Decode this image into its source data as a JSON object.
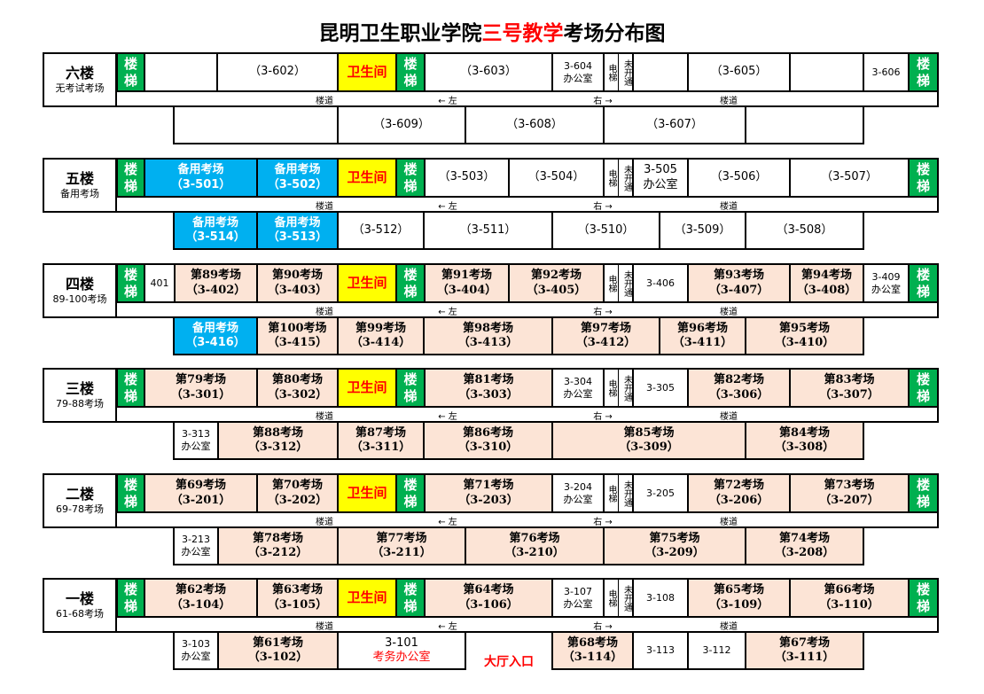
{
  "title": {
    "part1": "昆明卫生职业学院",
    "part2": "三号教学",
    "part3": "考场分布图"
  },
  "colors": {
    "exam": "#fce4d6",
    "spare": "#00b0f0",
    "stair": "#00b050",
    "toilet": "#ffff00",
    "highlight": "#ff0000"
  },
  "corridor": {
    "hall": "楼道",
    "left": "← 左",
    "right": "右 →"
  },
  "floors": [
    {
      "name": "六楼",
      "note": "无考试考场",
      "top": [
        {
          "type": "stair",
          "lines": [
            "楼",
            "梯"
          ]
        },
        {
          "type": "blank",
          "lines": []
        },
        {
          "type": "room",
          "lines": [
            "（3-602）"
          ]
        },
        {
          "type": "toilet",
          "lines": [
            "卫生间"
          ]
        },
        {
          "type": "stair",
          "lines": [
            "楼",
            "梯"
          ]
        },
        {
          "type": "room",
          "lines": [
            "（3-603）"
          ]
        },
        {
          "type": "office",
          "lines": [
            "3-604",
            "办公室"
          ]
        },
        {
          "type": "elevator",
          "lines": [
            "电梯",
            "未开通"
          ]
        },
        {
          "type": "blank",
          "lines": []
        },
        {
          "type": "room",
          "lines": [
            "（3-605）"
          ]
        },
        {
          "type": "blank",
          "lines": []
        },
        {
          "type": "office",
          "lines": [
            "3-606"
          ]
        },
        {
          "type": "stair",
          "lines": [
            "楼",
            "梯"
          ]
        }
      ],
      "bottom": [
        {
          "type": "blank",
          "lines": []
        },
        {
          "type": "room",
          "lines": [
            "（3-609）"
          ]
        },
        {
          "type": "room",
          "lines": [
            "（3-608）"
          ]
        },
        {
          "type": "room",
          "lines": [
            "（3-607）"
          ]
        },
        {
          "type": "blank",
          "lines": []
        }
      ]
    },
    {
      "name": "五楼",
      "note": "备用考场",
      "top": [
        {
          "type": "stair",
          "lines": [
            "楼",
            "梯"
          ]
        },
        {
          "type": "spare",
          "lines": [
            "备用考场",
            "（3-501）"
          ]
        },
        {
          "type": "spare",
          "lines": [
            "备用考场",
            "（3-502）"
          ]
        },
        {
          "type": "toilet",
          "lines": [
            "卫生间"
          ]
        },
        {
          "type": "stair",
          "lines": [
            "楼",
            "梯"
          ]
        },
        {
          "type": "room",
          "lines": [
            "（3-503）"
          ]
        },
        {
          "type": "room",
          "lines": [
            "（3-504）"
          ]
        },
        {
          "type": "elevator",
          "lines": [
            "电梯",
            "未开通"
          ]
        },
        {
          "type": "room",
          "lines": [
            "3-505",
            "办公室"
          ]
        },
        {
          "type": "room",
          "lines": [
            "（3-506）"
          ]
        },
        {
          "type": "room",
          "lines": [
            "（3-507）"
          ]
        },
        {
          "type": "stair",
          "lines": [
            "楼",
            "梯"
          ]
        }
      ],
      "bottom": [
        {
          "type": "spare",
          "lines": [
            "备用考场",
            "（3-514）"
          ]
        },
        {
          "type": "spare",
          "lines": [
            "备用考场",
            "（3-513）"
          ]
        },
        {
          "type": "room",
          "lines": [
            "（3-512）"
          ]
        },
        {
          "type": "room",
          "lines": [
            "（3-511）"
          ]
        },
        {
          "type": "room",
          "lines": [
            "（3-510）"
          ]
        },
        {
          "type": "room",
          "lines": [
            "（3-509）"
          ]
        },
        {
          "type": "room",
          "lines": [
            "（3-508）"
          ]
        }
      ]
    },
    {
      "name": "四楼",
      "note": "89-100考场",
      "top": [
        {
          "type": "stair",
          "lines": [
            "楼",
            "梯"
          ]
        },
        {
          "type": "office",
          "lines": [
            "401"
          ]
        },
        {
          "type": "exam",
          "lines": [
            "第89考场",
            "（3-402）"
          ]
        },
        {
          "type": "exam",
          "lines": [
            "第90考场",
            "（3-403）"
          ]
        },
        {
          "type": "toilet",
          "lines": [
            "卫生间"
          ]
        },
        {
          "type": "stair",
          "lines": [
            "楼",
            "梯"
          ]
        },
        {
          "type": "exam",
          "lines": [
            "第91考场",
            "（3-404）"
          ]
        },
        {
          "type": "exam",
          "lines": [
            "第92考场",
            "（3-405）"
          ]
        },
        {
          "type": "elevator",
          "lines": [
            "电梯",
            "未开通"
          ]
        },
        {
          "type": "office",
          "lines": [
            "3-406"
          ]
        },
        {
          "type": "exam",
          "lines": [
            "第93考场",
            "（3-407）"
          ]
        },
        {
          "type": "exam",
          "lines": [
            "第94考场",
            "（3-408）"
          ]
        },
        {
          "type": "office",
          "lines": [
            "3-409",
            "办公室"
          ]
        },
        {
          "type": "stair",
          "lines": [
            "楼",
            "梯"
          ]
        }
      ],
      "bottom": [
        {
          "type": "spare",
          "lines": [
            "备用考场",
            "（3-416）"
          ]
        },
        {
          "type": "exam",
          "lines": [
            "第100考场",
            "（3-415）"
          ]
        },
        {
          "type": "exam",
          "lines": [
            "第99考场",
            "（3-414）"
          ]
        },
        {
          "type": "exam",
          "lines": [
            "第98考场",
            "（3-413）"
          ]
        },
        {
          "type": "exam",
          "lines": [
            "第97考场",
            "（3-412）"
          ]
        },
        {
          "type": "exam",
          "lines": [
            "第96考场",
            "（3-411）"
          ]
        },
        {
          "type": "exam",
          "lines": [
            "第95考场",
            "（3-410）"
          ]
        }
      ]
    },
    {
      "name": "三楼",
      "note": "79-88考场",
      "top": [
        {
          "type": "stair",
          "lines": [
            "楼",
            "梯"
          ]
        },
        {
          "type": "exam",
          "lines": [
            "第79考场",
            "（3-301）"
          ]
        },
        {
          "type": "exam",
          "lines": [
            "第80考场",
            "（3-302）"
          ]
        },
        {
          "type": "toilet",
          "lines": [
            "卫生间"
          ]
        },
        {
          "type": "stair",
          "lines": [
            "楼",
            "梯"
          ]
        },
        {
          "type": "exam",
          "lines": [
            "第81考场",
            "（3-303）"
          ]
        },
        {
          "type": "office",
          "lines": [
            "3-304",
            "办公室"
          ]
        },
        {
          "type": "elevator",
          "lines": [
            "电梯",
            "未开通"
          ]
        },
        {
          "type": "office",
          "lines": [
            "3-305"
          ]
        },
        {
          "type": "exam",
          "lines": [
            "第82考场",
            "（3-306）"
          ]
        },
        {
          "type": "exam",
          "lines": [
            "第83考场",
            "（3-307）"
          ]
        },
        {
          "type": "stair",
          "lines": [
            "楼",
            "梯"
          ]
        }
      ],
      "bottom": [
        {
          "type": "office",
          "lines": [
            "3-313",
            "办公室"
          ]
        },
        {
          "type": "exam",
          "lines": [
            "第88考场",
            "（3-312）"
          ]
        },
        {
          "type": "exam",
          "lines": [
            "第87考场",
            "（3-311）"
          ]
        },
        {
          "type": "exam",
          "lines": [
            "第86考场",
            "（3-310）"
          ]
        },
        {
          "type": "exam",
          "lines": [
            "第85考场",
            "（3-309）"
          ]
        },
        {
          "type": "exam",
          "lines": [
            "第84考场",
            "（3-308）"
          ]
        }
      ]
    },
    {
      "name": "二楼",
      "note": "69-78考场",
      "top": [
        {
          "type": "stair",
          "lines": [
            "楼",
            "梯"
          ]
        },
        {
          "type": "exam",
          "lines": [
            "第69考场",
            "（3-201）"
          ]
        },
        {
          "type": "exam",
          "lines": [
            "第70考场",
            "（3-202）"
          ]
        },
        {
          "type": "toilet",
          "lines": [
            "卫生间"
          ]
        },
        {
          "type": "stair",
          "lines": [
            "楼",
            "梯"
          ]
        },
        {
          "type": "exam",
          "lines": [
            "第71考场",
            "（3-203）"
          ]
        },
        {
          "type": "office",
          "lines": [
            "3-204",
            "办公室"
          ]
        },
        {
          "type": "elevator",
          "lines": [
            "电梯",
            "未开通"
          ]
        },
        {
          "type": "office",
          "lines": [
            "3-205"
          ]
        },
        {
          "type": "exam",
          "lines": [
            "第72考场",
            "（3-206）"
          ]
        },
        {
          "type": "exam",
          "lines": [
            "第73考场",
            "（3-207）"
          ]
        },
        {
          "type": "stair",
          "lines": [
            "楼",
            "梯"
          ]
        }
      ],
      "bottom": [
        {
          "type": "office",
          "lines": [
            "3-213",
            "办公室"
          ]
        },
        {
          "type": "exam",
          "lines": [
            "第78考场",
            "（3-212）"
          ]
        },
        {
          "type": "exam",
          "lines": [
            "第77考场",
            "（3-211）"
          ]
        },
        {
          "type": "exam",
          "lines": [
            "第76考场",
            "（3-210）"
          ]
        },
        {
          "type": "exam",
          "lines": [
            "第75考场",
            "（3-209）"
          ]
        },
        {
          "type": "exam",
          "lines": [
            "第74考场",
            "（3-208）"
          ]
        }
      ]
    },
    {
      "name": "一楼",
      "note": "61-68考场",
      "top": [
        {
          "type": "stair",
          "lines": [
            "楼",
            "梯"
          ]
        },
        {
          "type": "exam",
          "lines": [
            "第62考场",
            "（3-104）"
          ]
        },
        {
          "type": "exam",
          "lines": [
            "第63考场",
            "（3-105）"
          ]
        },
        {
          "type": "toilet",
          "lines": [
            "卫生间"
          ]
        },
        {
          "type": "stair",
          "lines": [
            "楼",
            "梯"
          ]
        },
        {
          "type": "exam",
          "lines": [
            "第64考场",
            "（3-106）"
          ]
        },
        {
          "type": "office",
          "lines": [
            "3-107",
            "办公室"
          ]
        },
        {
          "type": "elevator",
          "lines": [
            "电梯",
            "未开通"
          ]
        },
        {
          "type": "office",
          "lines": [
            "3-108"
          ]
        },
        {
          "type": "exam",
          "lines": [
            "第65考场",
            "（3-109）"
          ]
        },
        {
          "type": "exam",
          "lines": [
            "第66考场",
            "（3-110）"
          ]
        },
        {
          "type": "stair",
          "lines": [
            "楼",
            "梯"
          ]
        }
      ],
      "bottom": [
        {
          "type": "office",
          "lines": [
            "3-103",
            "办公室"
          ]
        },
        {
          "type": "exam",
          "lines": [
            "第61考场",
            "（3-102）"
          ]
        },
        {
          "type": "room",
          "lines": [
            "3-101",
            "考务办公室"
          ]
        },
        {
          "type": "entrance",
          "lines": [
            "大厅入口"
          ]
        },
        {
          "type": "exam",
          "lines": [
            "第68考场",
            "（3-114）"
          ]
        },
        {
          "type": "office",
          "lines": [
            "3-113"
          ]
        },
        {
          "type": "office",
          "lines": [
            "3-112"
          ]
        },
        {
          "type": "exam",
          "lines": [
            "第67考场",
            "（3-111）"
          ]
        }
      ]
    }
  ]
}
